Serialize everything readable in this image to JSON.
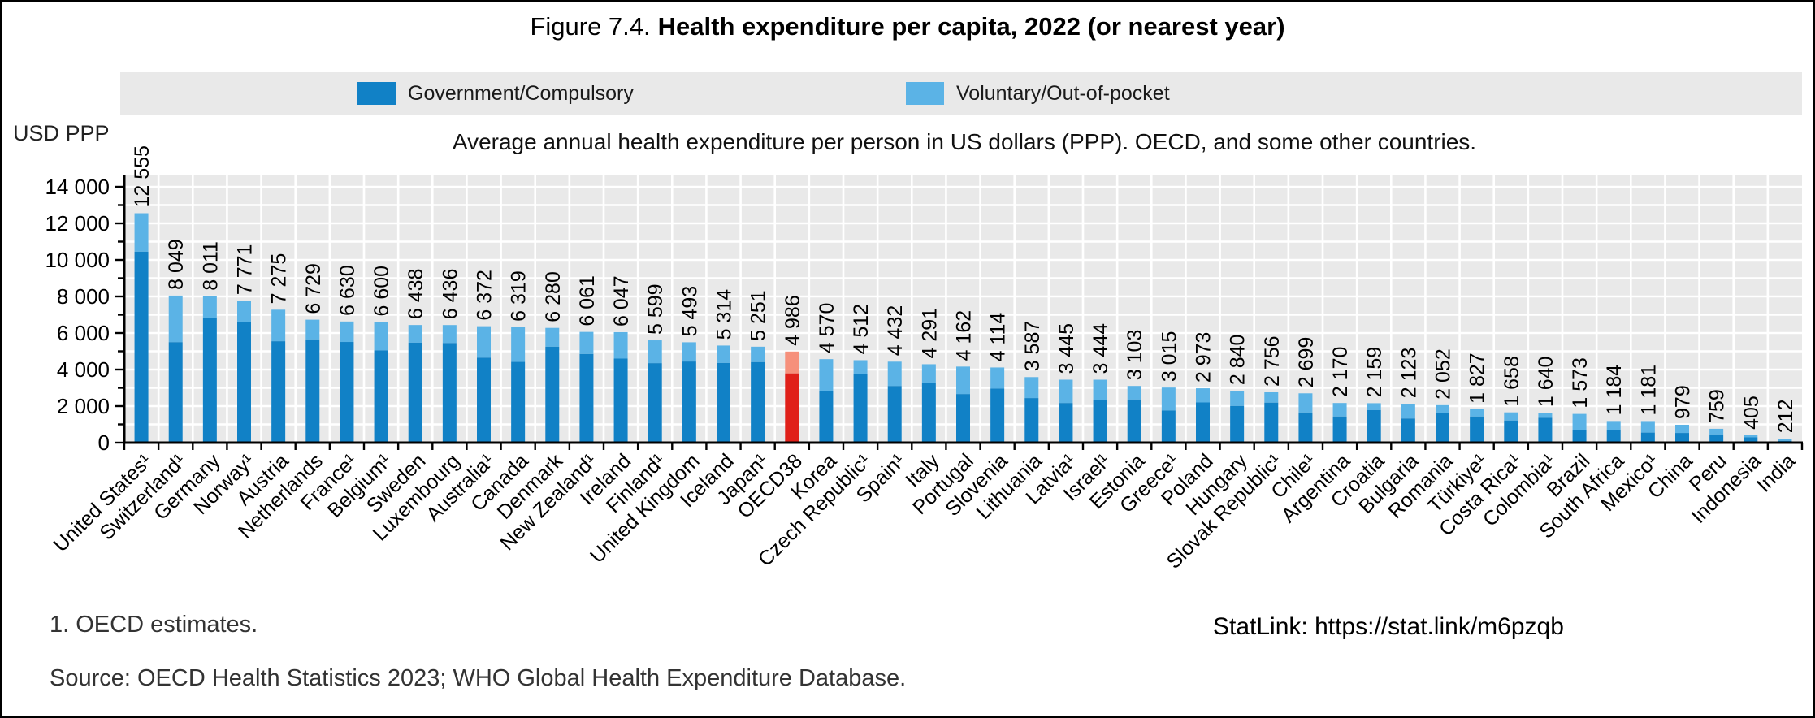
{
  "figure": {
    "label": "Figure 7.4.",
    "title": "Health expenditure per capita, 2022 (or nearest year)"
  },
  "subtitle": "Average annual health expenditure per person in US dollars (PPP). OECD, and some other countries.",
  "axis_unit": "USD PPP",
  "legend": [
    {
      "label": "Government/Compulsory",
      "color": "#1181c6"
    },
    {
      "label": "Voluntary/Out-of-pocket",
      "color": "#5bb3e6"
    }
  ],
  "footnote": "1. OECD estimates.",
  "statlink": "StatLink: https://stat.link/m6pzqb",
  "source": "Source: OECD Health Statistics 2023; WHO Global Health Expenditure Database.",
  "chart_data": {
    "type": "bar",
    "stacked": true,
    "title": "Health expenditure per capita, 2022 (or nearest year)",
    "ylabel": "USD PPP",
    "ylim": [
      0,
      14000
    ],
    "ytick_step": 2000,
    "gridline_step": 1000,
    "grid": true,
    "legend_position": "top",
    "series": [
      "Government/Compulsory",
      "Voluntary/Out-of-pocket"
    ],
    "highlight_category": "OECD38",
    "colors": {
      "government": "#1181c6",
      "voluntary": "#5bb3e6",
      "highlight_government": "#e02019",
      "highlight_voluntary": "#f6907b",
      "plot_background": "#e9e9e9",
      "gridline": "#ffffff"
    },
    "bars": [
      {
        "country": "United States¹",
        "total": 12555,
        "government": 10450
      },
      {
        "country": "Switzerland¹",
        "total": 8049,
        "government": 5500
      },
      {
        "country": "Germany",
        "total": 8011,
        "government": 6820
      },
      {
        "country": "Norway¹",
        "total": 7771,
        "government": 6600
      },
      {
        "country": "Austria",
        "total": 7275,
        "government": 5550
      },
      {
        "country": "Netherlands",
        "total": 6729,
        "government": 5650
      },
      {
        "country": "France¹",
        "total": 6630,
        "government": 5510
      },
      {
        "country": "Belgium¹",
        "total": 6600,
        "government": 5050
      },
      {
        "country": "Sweden",
        "total": 6438,
        "government": 5470
      },
      {
        "country": "Luxembourg",
        "total": 6436,
        "government": 5450
      },
      {
        "country": "Australia¹",
        "total": 6372,
        "government": 4650
      },
      {
        "country": "Canada",
        "total": 6319,
        "government": 4420
      },
      {
        "country": "Denmark",
        "total": 6280,
        "government": 5250
      },
      {
        "country": "New Zealand¹",
        "total": 6061,
        "government": 4850
      },
      {
        "country": "Ireland",
        "total": 6047,
        "government": 4600
      },
      {
        "country": "Finland¹",
        "total": 5599,
        "government": 4350
      },
      {
        "country": "United Kingdom",
        "total": 5493,
        "government": 4440
      },
      {
        "country": "Iceland",
        "total": 5314,
        "government": 4360
      },
      {
        "country": "Japan¹",
        "total": 5251,
        "government": 4410
      },
      {
        "country": "OECD38",
        "total": 4986,
        "government": 3790
      },
      {
        "country": "Korea",
        "total": 4570,
        "government": 2840
      },
      {
        "country": "Czech Republic¹",
        "total": 4512,
        "government": 3740
      },
      {
        "country": "Spain¹",
        "total": 4432,
        "government": 3100
      },
      {
        "country": "Italy",
        "total": 4291,
        "government": 3250
      },
      {
        "country": "Portugal",
        "total": 4162,
        "government": 2660
      },
      {
        "country": "Slovenia",
        "total": 4114,
        "government": 2960
      },
      {
        "country": "Lithuania",
        "total": 3587,
        "government": 2440
      },
      {
        "country": "Latvia¹",
        "total": 3445,
        "government": 2170
      },
      {
        "country": "Israel¹",
        "total": 3444,
        "government": 2350
      },
      {
        "country": "Estonia",
        "total": 3103,
        "government": 2360
      },
      {
        "country": "Greece¹",
        "total": 3015,
        "government": 1760
      },
      {
        "country": "Poland",
        "total": 2973,
        "government": 2200
      },
      {
        "country": "Hungary",
        "total": 2840,
        "government": 2010
      },
      {
        "country": "Slovak Republic¹",
        "total": 2756,
        "government": 2190
      },
      {
        "country": "Chile¹",
        "total": 2699,
        "government": 1650
      },
      {
        "country": "Argentina",
        "total": 2170,
        "government": 1430
      },
      {
        "country": "Croatia",
        "total": 2159,
        "government": 1780
      },
      {
        "country": "Bulgaria",
        "total": 2123,
        "government": 1320
      },
      {
        "country": "Romania",
        "total": 2052,
        "government": 1640
      },
      {
        "country": "Türkiye¹",
        "total": 1827,
        "government": 1430
      },
      {
        "country": "Costa Rica¹",
        "total": 1658,
        "government": 1210
      },
      {
        "country": "Colombia¹",
        "total": 1640,
        "government": 1360
      },
      {
        "country": "Brazil",
        "total": 1573,
        "government": 700
      },
      {
        "country": "South Africa",
        "total": 1184,
        "government": 670
      },
      {
        "country": "Mexico¹",
        "total": 1181,
        "government": 550
      },
      {
        "country": "China",
        "total": 979,
        "government": 530
      },
      {
        "country": "Peru",
        "total": 759,
        "government": 450
      },
      {
        "country": "Indonesia",
        "total": 405,
        "government": 290
      },
      {
        "country": "India",
        "total": 212,
        "government": 100
      }
    ]
  }
}
